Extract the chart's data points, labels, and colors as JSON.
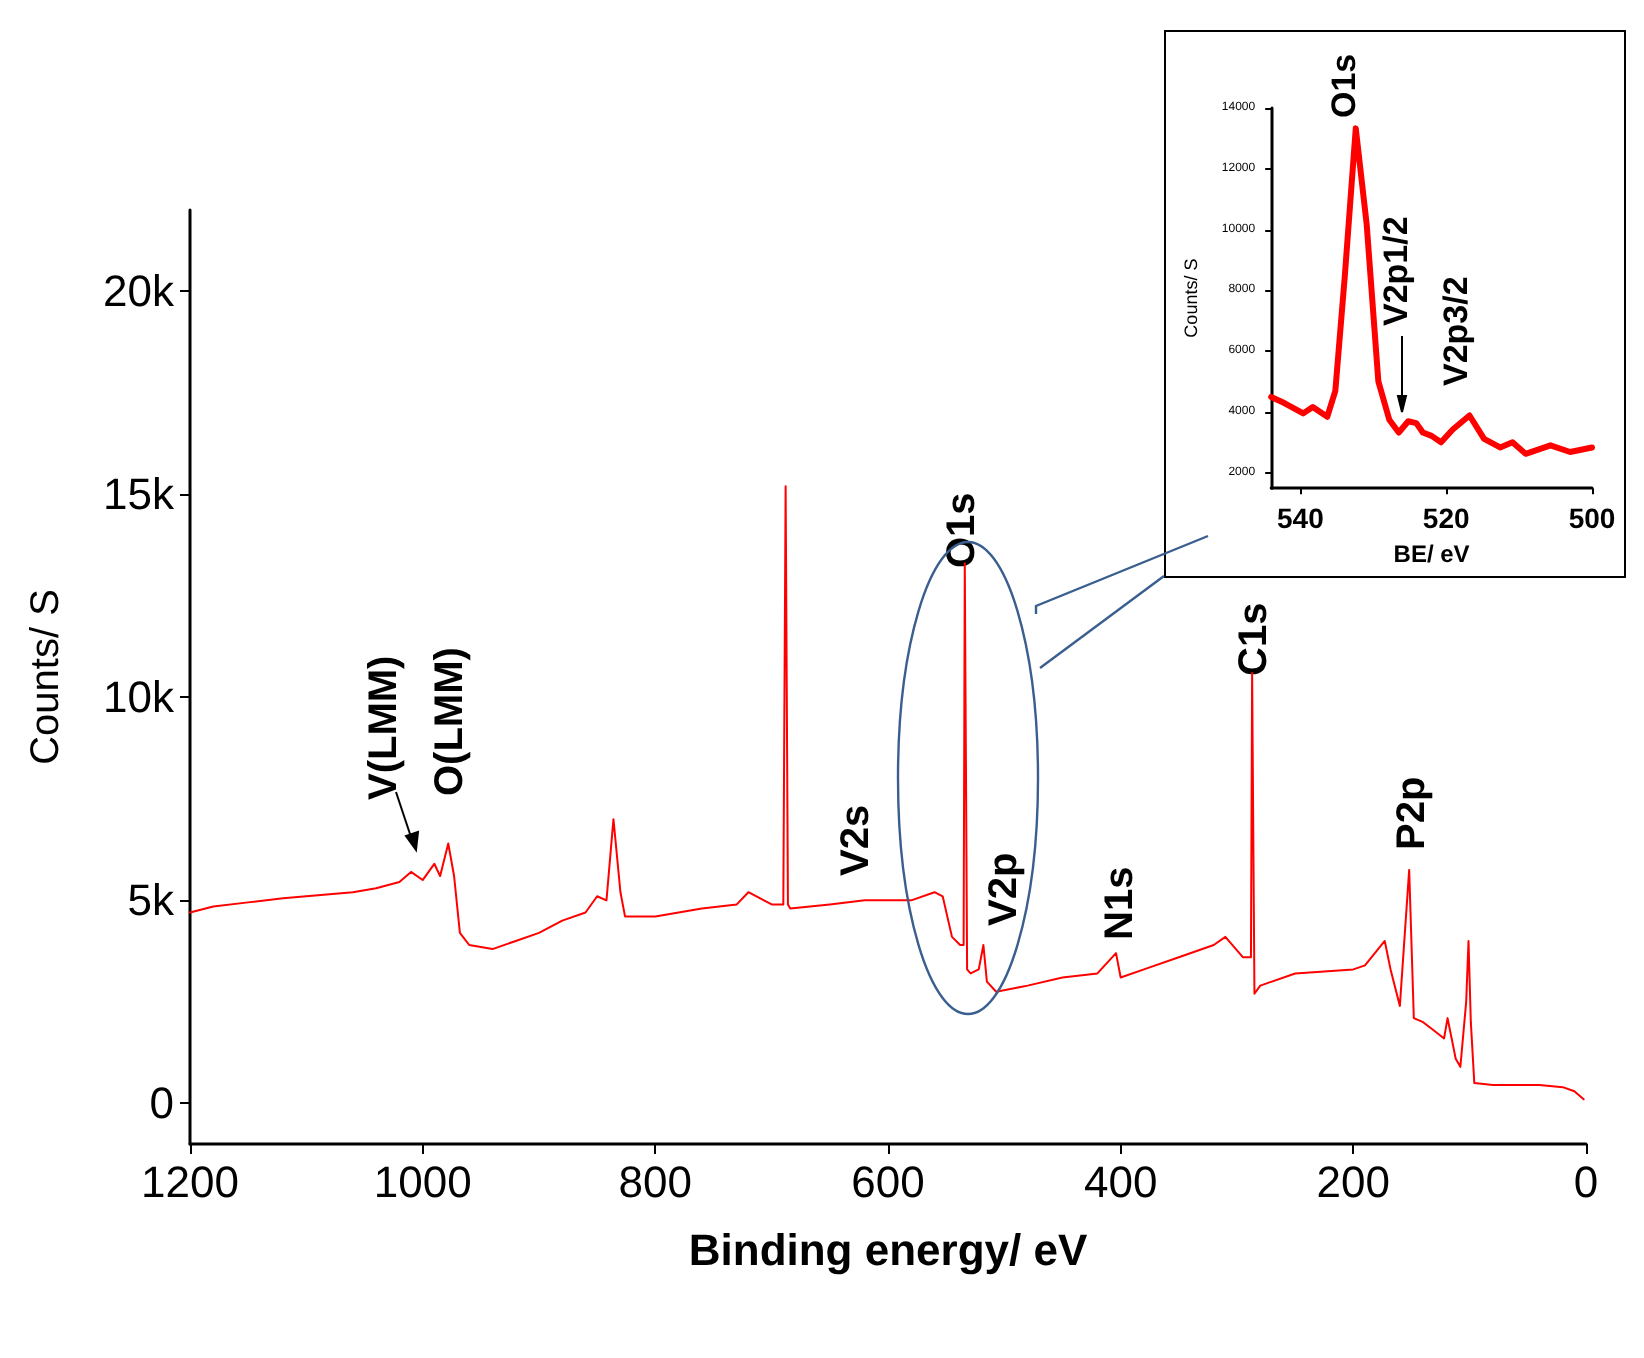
{
  "chart_data": [
    {
      "type": "line",
      "xlabel": "Binding energy/ eV",
      "ylabel": "Counts/ S",
      "xlim": [
        1200,
        0
      ],
      "xticks": [
        1200,
        1000,
        800,
        600,
        400,
        200,
        0
      ],
      "ylim": [
        -1000,
        22000
      ],
      "yticks": [
        0,
        {
          "value": 5000,
          "label": "5k"
        },
        {
          "value": 10000,
          "label": "10k"
        },
        {
          "value": 15000,
          "label": "15k"
        },
        {
          "value": 20000,
          "label": "20k"
        }
      ],
      "marker": "none",
      "line_style": "solid",
      "series": [
        {
          "color": "#ff0000",
          "x": [
            1200,
            1180,
            1150,
            1120,
            1100,
            1080,
            1060,
            1040,
            1020,
            1010,
            1000,
            990,
            985,
            978,
            973,
            968,
            960,
            940,
            920,
            900,
            880,
            860,
            850,
            842,
            836,
            830,
            826,
            800,
            760,
            730,
            720,
            700,
            690,
            688,
            686,
            684,
            650,
            620,
            580,
            560,
            553,
            545,
            538,
            535,
            534,
            532,
            529,
            522,
            518,
            515,
            507,
            480,
            450,
            420,
            404,
            400,
            380,
            350,
            320,
            310,
            295,
            288,
            287,
            285,
            280,
            250,
            200,
            190,
            173,
            168,
            160,
            152,
            148,
            140,
            131,
            122,
            119,
            112,
            108,
            103,
            101,
            99,
            96,
            80,
            60,
            40,
            20,
            10,
            2
          ],
          "values": [
            4700,
            4850,
            4950,
            5050,
            5100,
            5150,
            5200,
            5300,
            5450,
            5700,
            5500,
            5900,
            5600,
            6400,
            5600,
            4200,
            3900,
            3800,
            4000,
            4200,
            4500,
            4700,
            5100,
            5000,
            7000,
            5200,
            4600,
            4600,
            4800,
            4900,
            5200,
            4900,
            4900,
            15200,
            4900,
            4800,
            4900,
            5000,
            5000,
            5200,
            5100,
            4100,
            3900,
            3900,
            13300,
            3300,
            3200,
            3300,
            3900,
            3000,
            2750,
            2900,
            3100,
            3200,
            3700,
            3100,
            3300,
            3600,
            3900,
            4100,
            3600,
            3600,
            10600,
            2700,
            2900,
            3200,
            3300,
            3400,
            4000,
            3300,
            2400,
            5750,
            2100,
            2000,
            1800,
            1600,
            2100,
            1100,
            900,
            2500,
            4000,
            2000,
            500,
            450,
            450,
            450,
            400,
            300,
            100
          ]
        }
      ],
      "annotations": [
        "V(LMM)",
        "O(LMM)",
        "V2s",
        "O1s",
        "V2p",
        "N1s",
        "C1s",
        "P2p"
      ]
    },
    {
      "type": "line",
      "xlabel": "BE/ eV",
      "ylabel": "Counts/ S",
      "xlim": [
        544,
        500
      ],
      "xticks": [
        540,
        520,
        500
      ],
      "ylim": [
        1500,
        14000
      ],
      "yticks": [
        2000,
        4000,
        6000,
        8000,
        10000,
        12000,
        14000
      ],
      "marker": "none",
      "line_style": "solid",
      "series": [
        {
          "color": "#ff0000",
          "x": [
            544,
            542.2,
            539.6,
            538.3,
            536.3,
            535.2,
            533.9,
            532.4,
            530.9,
            529.3,
            527.8,
            526.5,
            525.2,
            524.1,
            523.2,
            522,
            520.7,
            519.1,
            516.8,
            514.8,
            512.6,
            510.9,
            509.1,
            505.7,
            503,
            500
          ],
          "values": [
            4500,
            4300,
            3960,
            4170,
            3850,
            4700,
            8480,
            13330,
            10170,
            5010,
            3750,
            3330,
            3700,
            3640,
            3330,
            3220,
            3010,
            3430,
            3890,
            3120,
            2840,
            3010,
            2630,
            2910,
            2690,
            2840
          ]
        }
      ],
      "annotations": [
        "O1s",
        "V2p1/2",
        "V2p3/2"
      ]
    }
  ]
}
